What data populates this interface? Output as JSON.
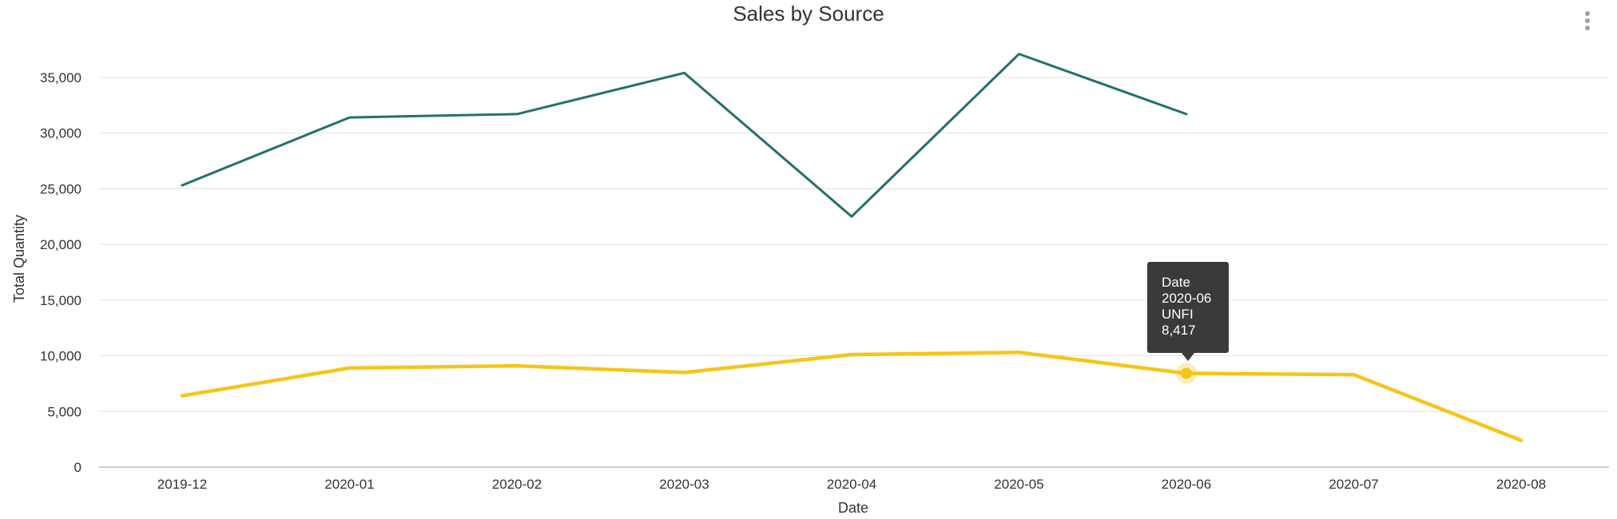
{
  "chart_data": {
    "type": "line",
    "title": "Sales by Source",
    "xlabel": "Date",
    "ylabel": "Total Quantity",
    "categories": [
      "2019-12",
      "2020-01",
      "2020-02",
      "2020-03",
      "2020-04",
      "2020-05",
      "2020-06",
      "2020-07",
      "2020-08"
    ],
    "ylim": [
      0,
      37500
    ],
    "yticks": [
      0,
      5000,
      10000,
      15000,
      20000,
      25000,
      30000,
      35000
    ],
    "ytick_labels": [
      "0",
      "5,000",
      "10,000",
      "15,000",
      "20,000",
      "25,000",
      "30,000",
      "35,000"
    ],
    "grid": true,
    "series": [
      {
        "color": "#24706b",
        "values": [
          25300,
          31400,
          31700,
          35400,
          22500,
          37100,
          31700,
          null,
          null
        ]
      },
      {
        "name": "UNFI",
        "color": "#f5c518",
        "values": [
          6400,
          8900,
          9100,
          8500,
          10100,
          10300,
          8417,
          8300,
          2400
        ]
      }
    ],
    "tooltip": {
      "date_label": "Date",
      "date_value": "2020-06",
      "series_label": "UNFI",
      "value_label": "8,417",
      "series_index": 1,
      "category_index": 6
    }
  },
  "ui": {
    "more_icon": "more-vertical-icon"
  }
}
